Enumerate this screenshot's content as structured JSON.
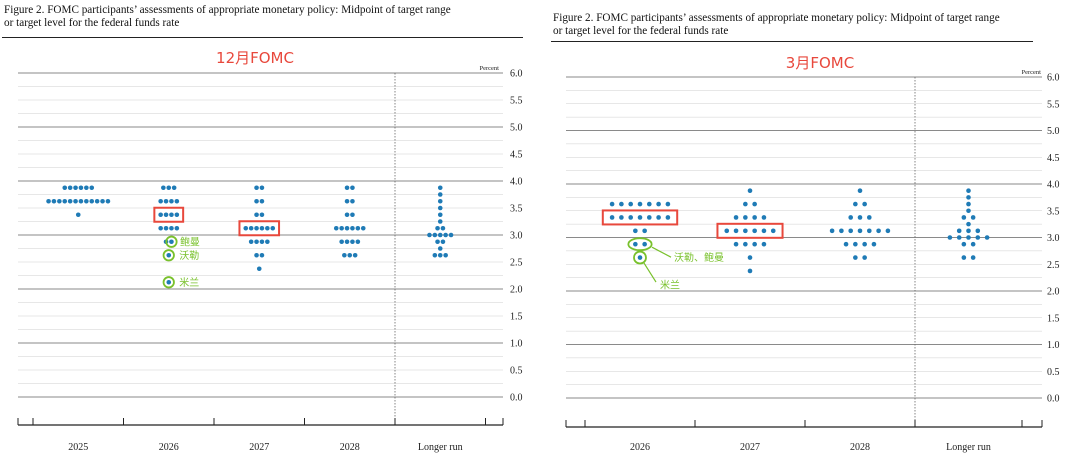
{
  "colors": {
    "dot": "#1f7bb6",
    "highlight": "#e8483c",
    "annotation": "#79c12c",
    "panel_label": "#e8483c"
  },
  "chart_data": [
    {
      "type": "scatter",
      "title_line1": "Figure 2. FOMC participants’ assessments of appropriate monetary policy: Midpoint of target range",
      "title_line2": "or target level for the federal funds rate",
      "label": "12月FOMC",
      "ylabel": "Percent",
      "ylim": [
        0,
        6
      ],
      "yticks": [
        "6.0",
        "5.5",
        "5.0",
        "4.5",
        "4.0",
        "3.5",
        "3.0",
        "2.5",
        "2.0",
        "1.5",
        "1.0",
        "0.5",
        "0.0"
      ],
      "categories": [
        "2025",
        "2026",
        "2027",
        "2028",
        "Longer run"
      ],
      "dots": [
        {
          "year": "2025",
          "rows": [
            {
              "value": 3.875,
              "count": 6
            },
            {
              "value": 3.625,
              "count": 12
            },
            {
              "value": 3.375,
              "count": 1
            }
          ]
        },
        {
          "year": "2026",
          "rows": [
            {
              "value": 3.875,
              "count": 3
            },
            {
              "value": 3.625,
              "count": 4
            },
            {
              "value": 3.375,
              "count": 4
            },
            {
              "value": 3.125,
              "count": 4
            },
            {
              "value": 2.875,
              "count": 2
            },
            {
              "value": 2.625,
              "count": 1
            },
            {
              "value": 2.125,
              "count": 1
            }
          ]
        },
        {
          "year": "2027",
          "rows": [
            {
              "value": 3.875,
              "count": 2
            },
            {
              "value": 3.625,
              "count": 2
            },
            {
              "value": 3.375,
              "count": 2
            },
            {
              "value": 3.125,
              "count": 6
            },
            {
              "value": 2.875,
              "count": 4
            },
            {
              "value": 2.625,
              "count": 2
            },
            {
              "value": 2.375,
              "count": 1
            }
          ]
        },
        {
          "year": "2028",
          "rows": [
            {
              "value": 3.875,
              "count": 2
            },
            {
              "value": 3.625,
              "count": 2
            },
            {
              "value": 3.375,
              "count": 2
            },
            {
              "value": 3.125,
              "count": 6
            },
            {
              "value": 2.875,
              "count": 4
            },
            {
              "value": 2.625,
              "count": 3
            }
          ]
        },
        {
          "year": "Longer run",
          "rows": [
            {
              "value": 3.875,
              "count": 1
            },
            {
              "value": 3.75,
              "count": 1
            },
            {
              "value": 3.625,
              "count": 1
            },
            {
              "value": 3.5,
              "count": 1
            },
            {
              "value": 3.375,
              "count": 1
            },
            {
              "value": 3.25,
              "count": 1
            },
            {
              "value": 3.125,
              "count": 2
            },
            {
              "value": 3.0,
              "count": 5
            },
            {
              "value": 2.875,
              "count": 2
            },
            {
              "value": 2.75,
              "count": 1
            },
            {
              "value": 2.625,
              "count": 3
            }
          ]
        }
      ],
      "highlights": [
        {
          "year": "2026",
          "value": 3.375
        },
        {
          "year": "2027",
          "value": 3.125
        }
      ],
      "annotations": [
        {
          "year": "2026",
          "value": 2.875,
          "dot_index": 1,
          "label": "鲍曼"
        },
        {
          "year": "2026",
          "value": 2.625,
          "dot_index": 0,
          "label": "沃勒"
        },
        {
          "year": "2026",
          "value": 2.125,
          "dot_index": 0,
          "label": "米兰"
        }
      ]
    },
    {
      "type": "scatter",
      "title_line1": "Figure 2. FOMC participants’ assessments of appropriate monetary policy: Midpoint of target range",
      "title_line2": "or target level for the federal funds rate",
      "label": "3月FOMC",
      "ylabel": "Percent",
      "ylim": [
        0,
        6
      ],
      "yticks": [
        "6.0",
        "5.5",
        "5.0",
        "4.5",
        "4.0",
        "3.5",
        "3.0",
        "2.5",
        "2.0",
        "1.5",
        "1.0",
        "0.5",
        "0.0"
      ],
      "categories": [
        "2026",
        "2027",
        "2028",
        "Longer run"
      ],
      "dots": [
        {
          "year": "2026",
          "rows": [
            {
              "value": 3.625,
              "count": 7
            },
            {
              "value": 3.375,
              "count": 7
            },
            {
              "value": 3.125,
              "count": 2
            },
            {
              "value": 2.875,
              "count": 2
            },
            {
              "value": 2.625,
              "count": 1
            }
          ]
        },
        {
          "year": "2027",
          "rows": [
            {
              "value": 3.875,
              "count": 1
            },
            {
              "value": 3.625,
              "count": 2
            },
            {
              "value": 3.375,
              "count": 4
            },
            {
              "value": 3.125,
              "count": 6
            },
            {
              "value": 2.875,
              "count": 4
            },
            {
              "value": 2.625,
              "count": 1
            },
            {
              "value": 2.375,
              "count": 1
            }
          ]
        },
        {
          "year": "2028",
          "rows": [
            {
              "value": 3.875,
              "count": 1
            },
            {
              "value": 3.625,
              "count": 2
            },
            {
              "value": 3.375,
              "count": 3
            },
            {
              "value": 3.125,
              "count": 7
            },
            {
              "value": 2.875,
              "count": 4
            },
            {
              "value": 2.625,
              "count": 2
            }
          ]
        },
        {
          "year": "Longer run",
          "rows": [
            {
              "value": 3.875,
              "count": 1
            },
            {
              "value": 3.75,
              "count": 1
            },
            {
              "value": 3.625,
              "count": 1
            },
            {
              "value": 3.5,
              "count": 1
            },
            {
              "value": 3.375,
              "count": 2
            },
            {
              "value": 3.25,
              "count": 1
            },
            {
              "value": 3.125,
              "count": 3
            },
            {
              "value": 3.0,
              "count": 5
            },
            {
              "value": 2.875,
              "count": 2
            },
            {
              "value": 2.625,
              "count": 2
            }
          ]
        }
      ],
      "highlights": [
        {
          "year": "2026",
          "value": 3.375
        },
        {
          "year": "2027",
          "value": 3.125
        }
      ],
      "annotations": [
        {
          "year": "2026",
          "value": 2.875,
          "label": "沃勒、鲍曼"
        },
        {
          "year": "2026",
          "value": 2.625,
          "dot_index": 0,
          "label": "米兰"
        }
      ]
    }
  ]
}
